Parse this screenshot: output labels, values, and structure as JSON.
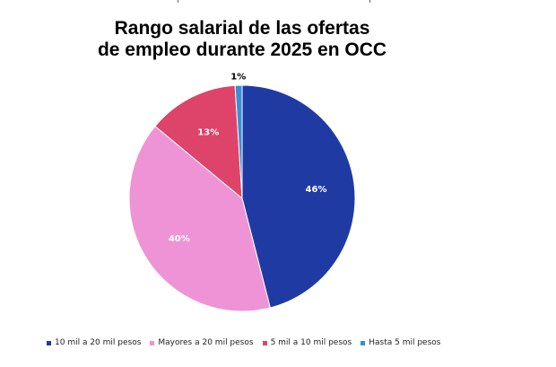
{
  "chart_data": {
    "type": "pie",
    "title_line1": "Rango salarial de las ofertas",
    "title_line2": "de empleo durante 2025 en OCC",
    "slices": [
      {
        "label": "10 mil a 20 mil pesos",
        "value": 46,
        "display": "46%",
        "color": "#1f3ba3",
        "label_color": "#ffffff"
      },
      {
        "label": "Mayores a 20 mil pesos",
        "value": 40,
        "display": "40%",
        "color": "#ee93d6",
        "label_color": "#ffffff"
      },
      {
        "label": "5 mil a 10 mil pesos",
        "value": 13,
        "display": "13%",
        "color": "#de4369",
        "label_color": "#ffffff"
      },
      {
        "label": "Hasta 5 mil pesos",
        "value": 1,
        "display": "1%",
        "color": "#3a8fd1",
        "label_color": "#000000"
      }
    ],
    "start_angle_deg": 0,
    "direction": "clockwise",
    "legend_position": "bottom"
  }
}
